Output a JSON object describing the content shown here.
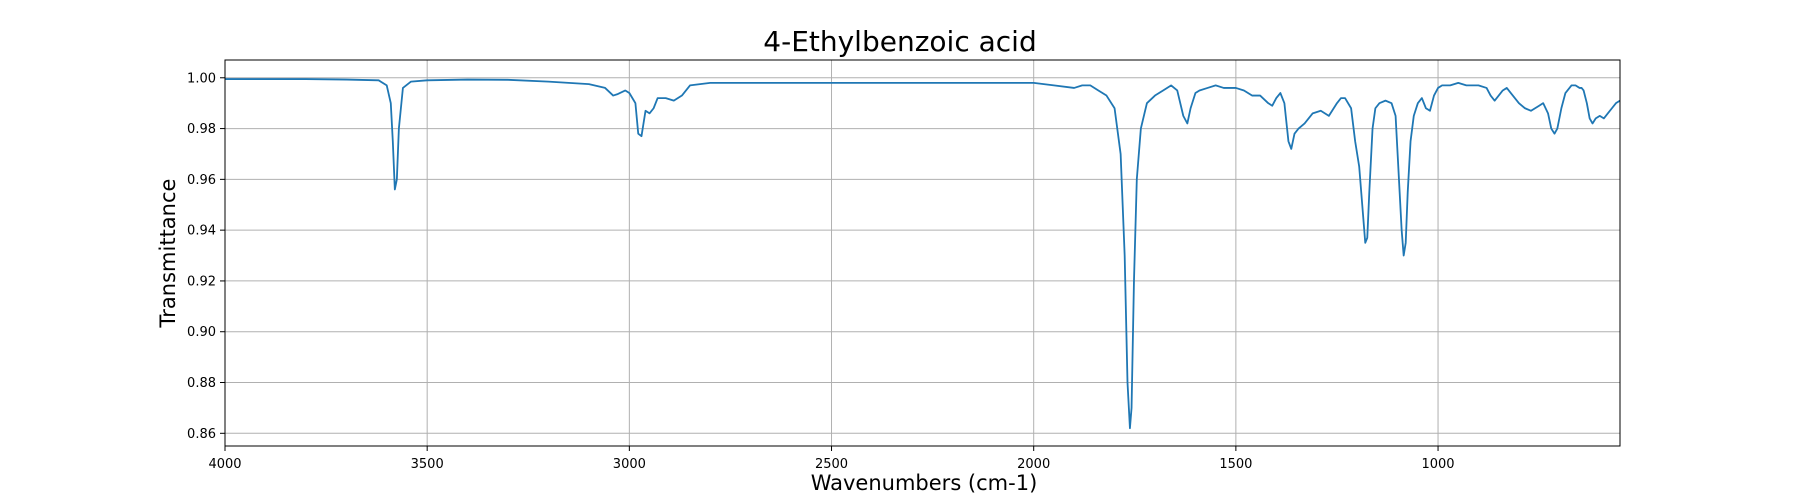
{
  "chart_data": {
    "type": "line",
    "title": "4-Ethylbenzoic acid",
    "xlabel": "Wavenumbers (cm-1)",
    "ylabel": "Transmittance",
    "xlim": [
      4000,
      550
    ],
    "ylim": [
      0.855,
      1.007
    ],
    "x_ticks": [
      4000,
      3500,
      3000,
      2500,
      2000,
      1500,
      1000
    ],
    "y_ticks": [
      0.86,
      0.88,
      0.9,
      0.92,
      0.94,
      0.96,
      0.98,
      1.0
    ],
    "y_tick_labels": [
      "0.86",
      "0.88",
      "0.90",
      "0.92",
      "0.94",
      "0.96",
      "0.98",
      "1.00"
    ],
    "grid": true,
    "line_color": "#1f77b4",
    "series": [
      {
        "x": [
          4000,
          3900,
          3800,
          3700,
          3620,
          3600,
          3590,
          3585,
          3580,
          3575,
          3570,
          3560,
          3540,
          3500,
          3400,
          3300,
          3200,
          3100,
          3060,
          3040,
          3030,
          3010,
          3000,
          2985,
          2978,
          2970,
          2960,
          2950,
          2940,
          2930,
          2910,
          2890,
          2870,
          2850,
          2800,
          2600,
          2400,
          2200,
          2000,
          1950,
          1900,
          1880,
          1860,
          1840,
          1820,
          1800,
          1785,
          1775,
          1768,
          1762,
          1758,
          1752,
          1745,
          1735,
          1720,
          1700,
          1680,
          1660,
          1645,
          1630,
          1620,
          1612,
          1600,
          1590,
          1570,
          1550,
          1530,
          1500,
          1480,
          1460,
          1440,
          1420,
          1410,
          1400,
          1390,
          1380,
          1370,
          1363,
          1355,
          1345,
          1330,
          1310,
          1290,
          1270,
          1250,
          1240,
          1230,
          1215,
          1205,
          1195,
          1185,
          1180,
          1175,
          1170,
          1162,
          1155,
          1145,
          1130,
          1115,
          1105,
          1100,
          1095,
          1090,
          1085,
          1080,
          1075,
          1068,
          1060,
          1050,
          1040,
          1030,
          1020,
          1010,
          1000,
          990,
          970,
          950,
          930,
          900,
          880,
          870,
          860,
          850,
          840,
          830,
          820,
          800,
          785,
          770,
          750,
          740,
          728,
          720,
          712,
          705,
          695,
          685,
          670,
          660,
          650,
          645,
          640,
          632,
          625,
          618,
          610,
          600,
          590,
          580,
          570,
          560,
          550
        ],
        "values": [
          0.9995,
          0.9995,
          0.9995,
          0.9993,
          0.999,
          0.997,
          0.99,
          0.975,
          0.956,
          0.96,
          0.98,
          0.996,
          0.9985,
          0.999,
          0.9993,
          0.9992,
          0.9985,
          0.9975,
          0.996,
          0.993,
          0.9935,
          0.995,
          0.994,
          0.99,
          0.978,
          0.977,
          0.987,
          0.986,
          0.988,
          0.992,
          0.992,
          0.991,
          0.993,
          0.997,
          0.998,
          0.998,
          0.998,
          0.998,
          0.998,
          0.997,
          0.996,
          0.997,
          0.997,
          0.995,
          0.993,
          0.988,
          0.97,
          0.93,
          0.88,
          0.862,
          0.87,
          0.92,
          0.96,
          0.98,
          0.99,
          0.993,
          0.995,
          0.997,
          0.995,
          0.985,
          0.982,
          0.988,
          0.994,
          0.995,
          0.996,
          0.997,
          0.996,
          0.996,
          0.995,
          0.993,
          0.993,
          0.99,
          0.989,
          0.992,
          0.994,
          0.99,
          0.975,
          0.972,
          0.978,
          0.98,
          0.982,
          0.986,
          0.987,
          0.985,
          0.99,
          0.992,
          0.992,
          0.988,
          0.975,
          0.965,
          0.945,
          0.935,
          0.937,
          0.955,
          0.98,
          0.988,
          0.99,
          0.991,
          0.99,
          0.985,
          0.97,
          0.955,
          0.94,
          0.93,
          0.935,
          0.955,
          0.975,
          0.985,
          0.99,
          0.992,
          0.988,
          0.987,
          0.993,
          0.996,
          0.997,
          0.997,
          0.998,
          0.997,
          0.997,
          0.996,
          0.993,
          0.991,
          0.993,
          0.995,
          0.996,
          0.994,
          0.99,
          0.988,
          0.987,
          0.989,
          0.99,
          0.986,
          0.98,
          0.978,
          0.98,
          0.988,
          0.994,
          0.997,
          0.997,
          0.996,
          0.996,
          0.995,
          0.99,
          0.984,
          0.982,
          0.984,
          0.985,
          0.984,
          0.986,
          0.988,
          0.99,
          0.991
        ]
      }
    ]
  }
}
